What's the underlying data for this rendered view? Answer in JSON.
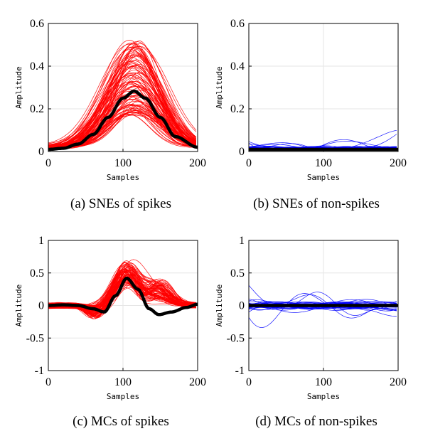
{
  "chart_data": [
    {
      "id": "a",
      "type": "line",
      "caption": "(a) SNEs of spikes",
      "xlabel": "Samples",
      "ylabel": "Amplitude",
      "xlim": [
        0,
        200
      ],
      "ylim": [
        0,
        0.6
      ],
      "xticks": [
        "0",
        "100",
        "200"
      ],
      "yticks": [
        "0",
        "0.2",
        "0.4",
        "0.6"
      ],
      "grid": true,
      "series": [
        {
          "role": "individual",
          "color": "#ff0000",
          "count": 100,
          "shape": "gaussian",
          "peak_x": 115,
          "peak_y_range": [
            0.14,
            0.5
          ],
          "baseline": 0.01
        },
        {
          "role": "mean",
          "color": "#000000",
          "x": [
            0,
            20,
            40,
            60,
            80,
            100,
            115,
            130,
            150,
            170,
            200
          ],
          "y": [
            0.01,
            0.015,
            0.035,
            0.08,
            0.16,
            0.25,
            0.283,
            0.25,
            0.16,
            0.07,
            0.02
          ]
        }
      ]
    },
    {
      "id": "b",
      "type": "line",
      "caption": "(b) SNEs of non-spikes",
      "xlabel": "Samples",
      "ylabel": "Amplitude",
      "xlim": [
        0,
        200
      ],
      "ylim": [
        0,
        0.6
      ],
      "xticks": [
        "0",
        "100",
        "200"
      ],
      "yticks": [
        "0",
        "0.2",
        "0.4",
        "0.6"
      ],
      "grid": true,
      "series": [
        {
          "role": "individual",
          "color": "#0000ff",
          "count": 60,
          "shape": "noise",
          "max_y": 0.13,
          "baseline": 0.01
        },
        {
          "role": "mean",
          "color": "#000000",
          "x": [
            0,
            200
          ],
          "y": [
            0.01,
            0.01
          ]
        }
      ]
    },
    {
      "id": "c",
      "type": "line",
      "caption": "(c) MCs of spikes",
      "xlabel": "Samples",
      "ylabel": "Amplitude",
      "xlim": [
        0,
        200
      ],
      "ylim": [
        -1,
        1
      ],
      "xticks": [
        "0",
        "100",
        "200"
      ],
      "yticks": [
        "-1",
        "-0.5",
        "0",
        "0.5",
        "1"
      ],
      "grid": true,
      "series": [
        {
          "role": "individual",
          "color": "#ff0000",
          "count": 80,
          "shape": "biphasic",
          "peak_x": 105,
          "peak_y_range": [
            0.3,
            0.68
          ],
          "trough_x": 148,
          "trough_y_range": [
            -0.05,
            -0.38
          ]
        },
        {
          "role": "mean",
          "color": "#000000",
          "x": [
            0,
            20,
            40,
            60,
            75,
            90,
            105,
            120,
            135,
            148,
            165,
            185,
            200
          ],
          "y": [
            0,
            0.01,
            0.0,
            -0.05,
            -0.1,
            0.15,
            0.42,
            0.25,
            -0.05,
            -0.14,
            -0.1,
            -0.03,
            0.02
          ]
        }
      ]
    },
    {
      "id": "d",
      "type": "line",
      "caption": "(d) MCs of non-spikes",
      "xlabel": "Samples",
      "ylabel": "Amplitude",
      "xlim": [
        0,
        200
      ],
      "ylim": [
        -1,
        1
      ],
      "xticks": [
        "0",
        "100",
        "200"
      ],
      "yticks": [
        "-1",
        "-0.5",
        "0",
        "0.5",
        "1"
      ],
      "grid": true,
      "series": [
        {
          "role": "individual",
          "color": "#0000ff",
          "count": 50,
          "shape": "noise",
          "max_y": 0.38
        },
        {
          "role": "mean",
          "color": "#000000",
          "x": [
            0,
            200
          ],
          "y": [
            0,
            0
          ]
        }
      ]
    }
  ]
}
